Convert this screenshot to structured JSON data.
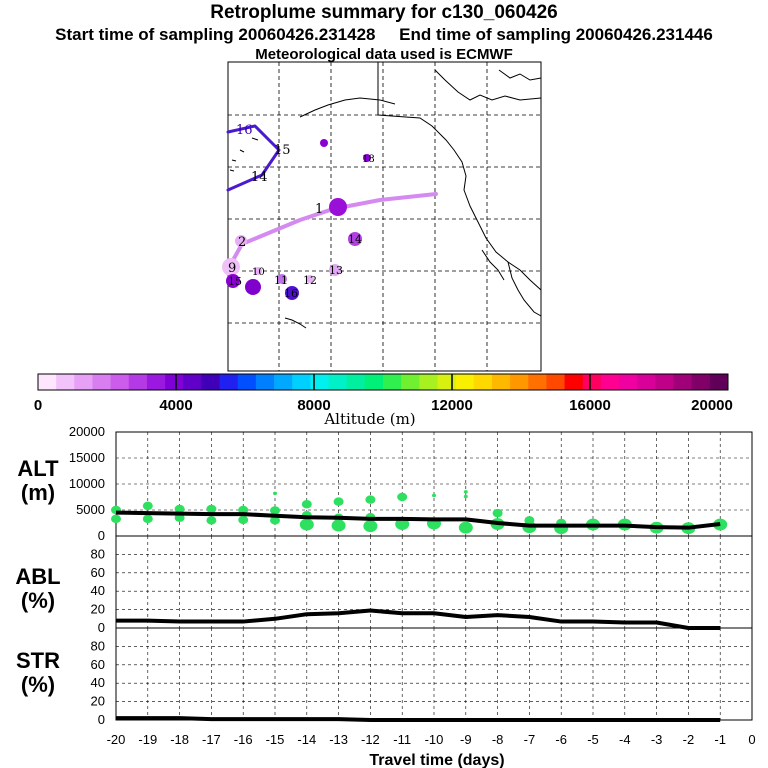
{
  "header": {
    "title": "Retroplume summary for c130_060426",
    "sampling": "Start time of sampling 20060426.231428     End time of sampling 20060426.231446",
    "met": "Meteorological data used is ECMWF"
  },
  "map": {
    "labels": [
      {
        "text": "16",
        "color": "#3a00b0"
      },
      {
        "text": "15",
        "color": "#000000"
      },
      {
        "text": "14",
        "color": "#000000"
      },
      {
        "text": "1",
        "color": "#000000"
      },
      {
        "text": "2",
        "color": "#000000"
      },
      {
        "text": "9",
        "color": "#000000"
      },
      {
        "text": "10",
        "color": "#000000"
      },
      {
        "text": "11",
        "color": "#000000"
      },
      {
        "text": "12",
        "color": "#000000"
      },
      {
        "text": "13",
        "color": "#000000"
      },
      {
        "text": "14",
        "color": "#000000"
      },
      {
        "text": "15",
        "color": "#000000"
      },
      {
        "text": "16",
        "color": "#000000"
      },
      {
        "text": "18",
        "color": "#000000"
      }
    ]
  },
  "colorbar": {
    "ticks": [
      "0",
      "4000",
      "8000",
      "12000",
      "16000",
      "20000"
    ],
    "label": "Altitude  (m)",
    "colors": [
      "#ffe6ff",
      "#f2c2fa",
      "#e6a0f5",
      "#d97ef0",
      "#cc5ceb",
      "#b43ae6",
      "#9b18e0",
      "#8000d8",
      "#6000c8",
      "#4000b8",
      "#2020f0",
      "#0050ff",
      "#0080ff",
      "#00a8ff",
      "#00d0ff",
      "#00f0f0",
      "#00f0c8",
      "#00f0a0",
      "#00f078",
      "#30f050",
      "#70f030",
      "#a8f020",
      "#d8f010",
      "#f8f000",
      "#ffd800",
      "#ffb800",
      "#ff9800",
      "#ff7000",
      "#ff4800",
      "#ff0000",
      "#ff0060",
      "#ff0090",
      "#f000a0",
      "#d80098",
      "#c00088",
      "#a00078",
      "#800068",
      "#600058"
    ]
  },
  "panels": {
    "alt": {
      "line1": "ALT",
      "line2": "(m)"
    },
    "abl": {
      "line1": "ABL",
      "line2": "(%)"
    },
    "str": {
      "line1": "STR",
      "line2": "(%)"
    }
  },
  "xaxis": {
    "label": "Travel time (days)"
  },
  "chart_data": [
    {
      "type": "line",
      "title": "ALT (m)",
      "xlabel": "Travel time (days)",
      "ylabel": "ALT (m)",
      "xlim": [
        -20,
        0
      ],
      "ylim": [
        0,
        20000
      ],
      "yticks": [
        0,
        5000,
        10000,
        15000,
        20000
      ],
      "x": [
        -20,
        -19,
        -18,
        -17,
        -16,
        -15,
        -14,
        -13,
        -12,
        -11,
        -10,
        -9,
        -8,
        -7,
        -6,
        -5,
        -4,
        -3,
        -2,
        -1
      ],
      "series": [
        {
          "name": "mean altitude",
          "values": [
            4500,
            4400,
            4300,
            4200,
            4200,
            3900,
            3600,
            3500,
            3300,
            3300,
            3200,
            3200,
            2500,
            2000,
            2000,
            2000,
            2000,
            1700,
            1600,
            2300
          ]
        }
      ],
      "clusters": [
        {
          "name": "cluster altitudes",
          "color": "#2ee060",
          "points": [
            {
              "x": -20,
              "y": 3300
            },
            {
              "x": -20,
              "y": 5000
            },
            {
              "x": -19,
              "y": 3300
            },
            {
              "x": -19,
              "y": 5800
            },
            {
              "x": -18,
              "y": 3500
            },
            {
              "x": -18,
              "y": 5200
            },
            {
              "x": -17,
              "y": 3000
            },
            {
              "x": -17,
              "y": 5200
            },
            {
              "x": -16,
              "y": 3100
            },
            {
              "x": -16,
              "y": 5000
            },
            {
              "x": -15,
              "y": 3000
            },
            {
              "x": -15,
              "y": 4900
            },
            {
              "x": -15,
              "y": 8200
            },
            {
              "x": -14,
              "y": 2200
            },
            {
              "x": -14,
              "y": 4000
            },
            {
              "x": -14,
              "y": 6100
            },
            {
              "x": -13,
              "y": 2000
            },
            {
              "x": -13,
              "y": 3500
            },
            {
              "x": -13,
              "y": 6600
            },
            {
              "x": -12,
              "y": 1900
            },
            {
              "x": -12,
              "y": 3600
            },
            {
              "x": -12,
              "y": 7000
            },
            {
              "x": -11,
              "y": 2300
            },
            {
              "x": -11,
              "y": 7500
            },
            {
              "x": -10,
              "y": 2400
            },
            {
              "x": -10,
              "y": 7800
            },
            {
              "x": -9,
              "y": 1600
            },
            {
              "x": -9,
              "y": 7600
            },
            {
              "x": -9,
              "y": 8500
            },
            {
              "x": -8,
              "y": 2300
            },
            {
              "x": -8,
              "y": 4400
            },
            {
              "x": -7,
              "y": 1700
            },
            {
              "x": -7,
              "y": 3000
            },
            {
              "x": -6,
              "y": 1500
            },
            {
              "x": -6,
              "y": 2500
            },
            {
              "x": -5,
              "y": 2200
            },
            {
              "x": -4,
              "y": 2200
            },
            {
              "x": -3,
              "y": 1600
            },
            {
              "x": -2,
              "y": 1500
            },
            {
              "x": -1,
              "y": 2200
            }
          ]
        }
      ]
    },
    {
      "type": "line",
      "title": "ABL (%)",
      "xlabel": "Travel time (days)",
      "ylabel": "ABL (%)",
      "xlim": [
        -20,
        0
      ],
      "ylim": [
        0,
        100
      ],
      "yticks": [
        0,
        20,
        40,
        60,
        80
      ],
      "x": [
        -20,
        -19,
        -18,
        -17,
        -16,
        -15,
        -14,
        -13,
        -12,
        -11,
        -10,
        -9,
        -8,
        -7,
        -6,
        -5,
        -4,
        -3,
        -2,
        -1
      ],
      "series": [
        {
          "name": "ABL fraction",
          "values": [
            8,
            8,
            7,
            7,
            7,
            10,
            15,
            16,
            19,
            16,
            16,
            12,
            14,
            12,
            7,
            7,
            6,
            6,
            0,
            0
          ]
        }
      ]
    },
    {
      "type": "line",
      "title": "STR (%)",
      "xlabel": "Travel time (days)",
      "ylabel": "STR (%)",
      "xlim": [
        -20,
        0
      ],
      "ylim": [
        0,
        100
      ],
      "yticks": [
        0,
        20,
        40,
        60,
        80
      ],
      "xticks": [
        -20,
        -19,
        -18,
        -17,
        -16,
        -15,
        -14,
        -13,
        -12,
        -11,
        -10,
        -9,
        -8,
        -7,
        -6,
        -5,
        -4,
        -3,
        -2,
        -1,
        0
      ],
      "x": [
        -20,
        -19,
        -18,
        -17,
        -16,
        -15,
        -14,
        -13,
        -12,
        -11,
        -10,
        -9,
        -8,
        -7,
        -6,
        -5,
        -4,
        -3,
        -2,
        -1
      ],
      "series": [
        {
          "name": "stratospheric fraction",
          "values": [
            2,
            2,
            2,
            1,
            1,
            1,
            1,
            1,
            0,
            0,
            0,
            0,
            0,
            0,
            0,
            0,
            0,
            0,
            0,
            0
          ]
        }
      ]
    }
  ]
}
